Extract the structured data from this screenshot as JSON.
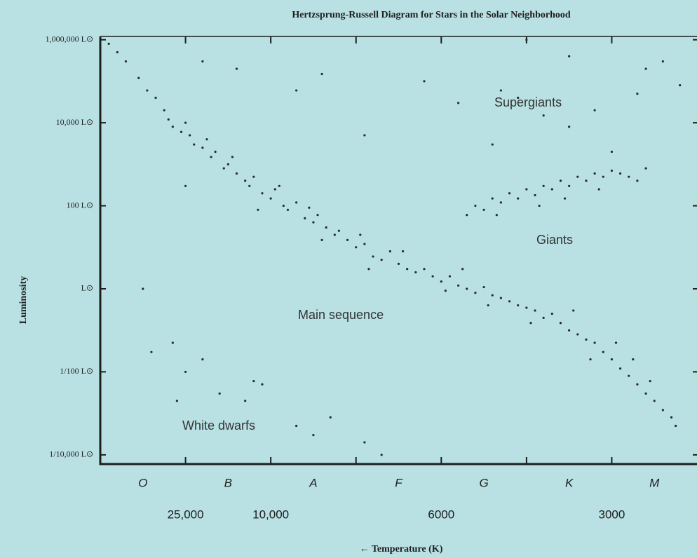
{
  "chart_data": {
    "type": "scatter",
    "title": "Hertzsprung-Russell Diagram for Stars in the Solar Neighborhood",
    "x_label": "← Temperature (K)",
    "y_label": "Luminosity",
    "categories": [
      "O",
      "B",
      "A",
      "F",
      "G",
      "K",
      "M"
    ],
    "annotations": [
      "Supergiants",
      "Giants",
      "Main sequence",
      "White dwarfs"
    ],
    "color": "#2a2a2a",
    "log_y": true,
    "xlim": [
      0,
      7
    ],
    "ylim": [
      6e-05,
      1200000
    ],
    "xticks": [
      {
        "value": 1,
        "label": "25,000"
      },
      {
        "value": 2,
        "label": "10,000"
      },
      {
        "value": 4,
        "label": "6000"
      },
      {
        "value": 6,
        "label": "3000"
      }
    ],
    "xminorticks": [
      3,
      5
    ],
    "yticks": [
      {
        "value": 1000000,
        "label": "1,000,000 L⊙"
      },
      {
        "value": 10000,
        "label": "10,000 L⊙"
      },
      {
        "value": 100,
        "label": "100 L⊙"
      },
      {
        "value": 1,
        "label": "L⊙"
      },
      {
        "value": 0.01,
        "label": "1/100 L⊙"
      },
      {
        "value": 0.0001,
        "label": "1/10,000 L⊙"
      }
    ],
    "x": [
      0.1,
      0.2,
      0.3,
      0.45,
      0.55,
      0.65,
      0.75,
      0.8,
      0.85,
      0.95,
      1.05,
      1.1,
      1.2,
      1.3,
      1.35,
      1.45,
      1.5,
      1.6,
      1.7,
      1.75,
      1.8,
      1.9,
      2.0,
      2.05,
      2.15,
      2.2,
      2.3,
      2.4,
      2.5,
      2.55,
      2.65,
      2.75,
      2.8,
      2.9,
      3.0,
      3.1,
      3.2,
      3.3,
      3.4,
      3.5,
      3.6,
      3.7,
      3.8,
      3.9,
      4.0,
      4.1,
      4.2,
      4.3,
      4.4,
      4.5,
      4.6,
      4.7,
      4.8,
      4.9,
      5.0,
      5.1,
      5.2,
      5.3,
      5.4,
      5.5,
      5.6,
      5.7,
      5.8,
      5.9,
      6.0,
      6.1,
      6.2,
      6.3,
      6.4,
      6.5,
      6.6,
      6.7,
      6.75,
      1.0,
      1.25,
      1.55,
      2.1,
      2.45,
      3.05,
      3.55,
      4.05,
      4.55,
      5.05,
      5.55,
      6.05,
      6.25,
      6.45,
      5.75,
      4.25,
      3.15,
      2.6,
      1.85,
      4.3,
      4.4,
      4.5,
      4.6,
      4.7,
      4.8,
      4.9,
      5.0,
      5.1,
      5.2,
      5.3,
      5.4,
      5.5,
      5.6,
      5.7,
      5.8,
      5.9,
      6.0,
      6.1,
      6.2,
      6.4,
      4.65,
      5.15,
      5.45,
      5.85,
      6.3,
      4.7,
      4.9,
      5.2,
      5.5,
      5.8,
      6.0,
      6.3,
      6.6,
      6.4,
      5.5,
      4.2,
      3.8,
      3.1,
      2.6,
      1.6,
      1.2,
      2.3,
      4.6,
      6.8,
      5.0,
      1.0,
      0.6,
      1.0,
      1.4,
      1.7,
      1.8,
      1.9,
      2.3,
      2.7,
      3.1,
      0.85,
      1.2,
      2.5,
      3.3,
      0.9,
      0.5
    ],
    "values": [
      800000,
      500000,
      300000,
      120000,
      60000,
      40000,
      20000,
      12000,
      8000,
      6000,
      5000,
      3000,
      2500,
      1500,
      2000,
      800,
      1000,
      600,
      400,
      300,
      500,
      200,
      150,
      250,
      100,
      80,
      120,
      50,
      40,
      60,
      30,
      20,
      25,
      15,
      10,
      12,
      6,
      5,
      8,
      4,
      3,
      2.5,
      3,
      2,
      1.5,
      2,
      1.2,
      1,
      0.8,
      1.1,
      0.7,
      0.6,
      0.5,
      0.4,
      0.35,
      0.3,
      0.2,
      0.25,
      0.15,
      0.1,
      0.08,
      0.06,
      0.05,
      0.03,
      0.02,
      0.012,
      0.008,
      0.005,
      0.003,
      0.002,
      0.0012,
      0.0008,
      0.0005,
      10000,
      4000,
      1500,
      300,
      90,
      20,
      8,
      0.9,
      0.4,
      0.15,
      0.3,
      0.05,
      0.02,
      0.006,
      0.02,
      3,
      3,
      15,
      80,
      60,
      100,
      80,
      150,
      120,
      200,
      150,
      250,
      180,
      300,
      250,
      400,
      300,
      500,
      400,
      600,
      500,
      700,
      600,
      500,
      800,
      60,
      100,
      150,
      250,
      400,
      60000,
      40000,
      15000,
      8000,
      20000,
      2000,
      50000,
      300000,
      200000,
      400000,
      30000,
      100000,
      5000,
      150000,
      200000,
      300000,
      60000,
      3000,
      80000,
      1000000,
      300,
      0.03,
      0.01,
      0.003,
      0.002,
      0.006,
      0.005,
      0.0005,
      0.0008,
      0.0002,
      0.05,
      0.02,
      0.0003,
      0.0001,
      0.002,
      1
    ]
  }
}
